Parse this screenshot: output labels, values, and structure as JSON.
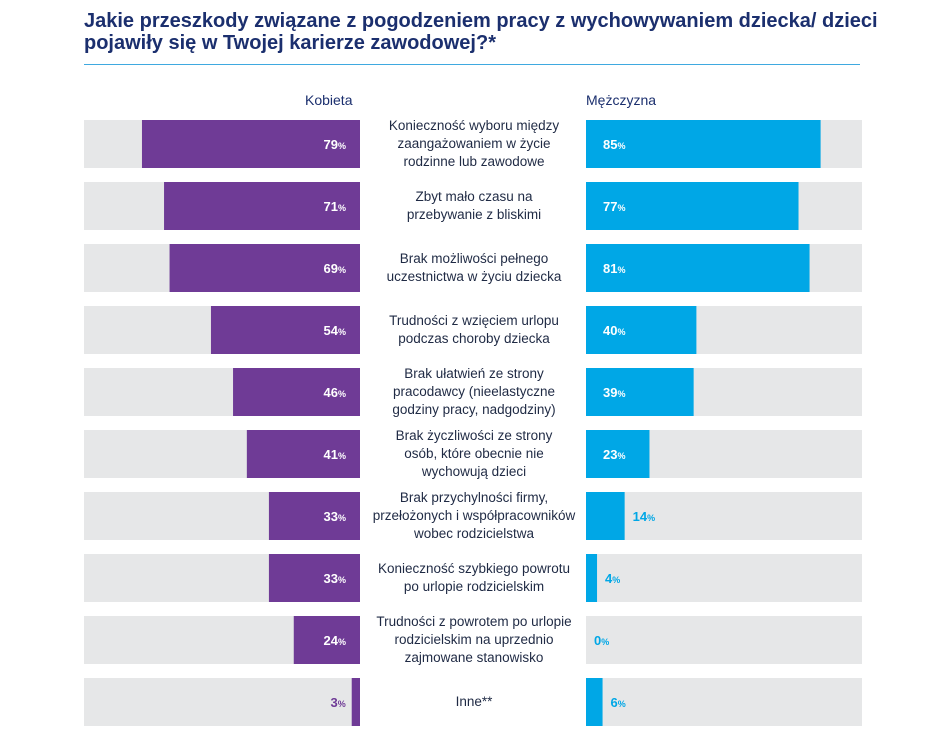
{
  "title": "Jakie przeszkody związane z pogodzeniem pracy z wychowywaniem dziecka/ dzieci pojawiły się w Twojej karierze zawodowej?*",
  "colors": {
    "woman": "#6f3b96",
    "man": "#00a7e6",
    "track": "#e6e7e8",
    "title": "#1b2f6e",
    "rule": "#3fa9e0"
  },
  "chart_data": {
    "type": "bar",
    "title": "Jakie przeszkody związane z pogodzeniem pracy z wychowywaniem dziecka/ dzieci pojawiły się w Twojej karierze zawodowej?*",
    "xlabel": "",
    "ylabel": "",
    "xlim": [
      0,
      100
    ],
    "categories": [
      "Konieczność wyboru między zaangażowaniem w życie rodzinne lub zawodowe",
      "Zbyt mało czasu na przebywanie z bliskimi",
      "Brak możliwości pełnego uczestnictwa w życiu dziecka",
      "Trudności z wzięciem urlopu podczas choroby dziecka",
      "Brak ułatwień ze strony pracodawcy (nieelastyczne godziny pracy, nadgodziny)",
      "Brak życzliwości ze strony osób, które obecnie nie wychowują dzieci",
      "Brak przychylności firmy, przełożonych i współpracowników wobec rodzicielstwa",
      "Konieczność szybkiego powrotu po urlopie rodzicielskim",
      "Trudności z powrotem po urlopie rodzicielskim na uprzednio zajmowane stanowisko",
      "Inne**"
    ],
    "category_lines": [
      [
        "Konieczność wyboru między",
        "zaangażowaniem w życie",
        "rodzinne lub zawodowe"
      ],
      [
        "Zbyt mało czasu na",
        "przebywanie z bliskimi"
      ],
      [
        "Brak możliwości pełnego",
        "uczestnictwa w życiu dziecka"
      ],
      [
        "Trudności z wzięciem urlopu",
        "podczas choroby dziecka"
      ],
      [
        "Brak ułatwień ze strony",
        "pracodawcy (nieelastyczne",
        "godziny pracy, nadgodziny)"
      ],
      [
        "Brak życzliwości ze strony",
        "osób, które obecnie nie",
        "wychowują dzieci"
      ],
      [
        "Brak przychylności firmy,",
        "przełożonych i współpracowników",
        "wobec rodzicielstwa"
      ],
      [
        "Konieczność szybkiego powrotu",
        "po urlopie rodzicielskim"
      ],
      [
        "Trudności z powrotem po urlopie",
        "rodzicielskim na uprzednio",
        "zajmowane stanowisko"
      ],
      [
        "Inne**"
      ]
    ],
    "series": [
      {
        "name": "Kobieta",
        "values": [
          79,
          71,
          69,
          54,
          46,
          41,
          33,
          33,
          24,
          3
        ]
      },
      {
        "name": "Mężczyzna",
        "values": [
          85,
          77,
          81,
          40,
          39,
          23,
          14,
          4,
          0,
          6
        ]
      }
    ],
    "value_suffix": "%",
    "grid": false,
    "legend": "top"
  }
}
